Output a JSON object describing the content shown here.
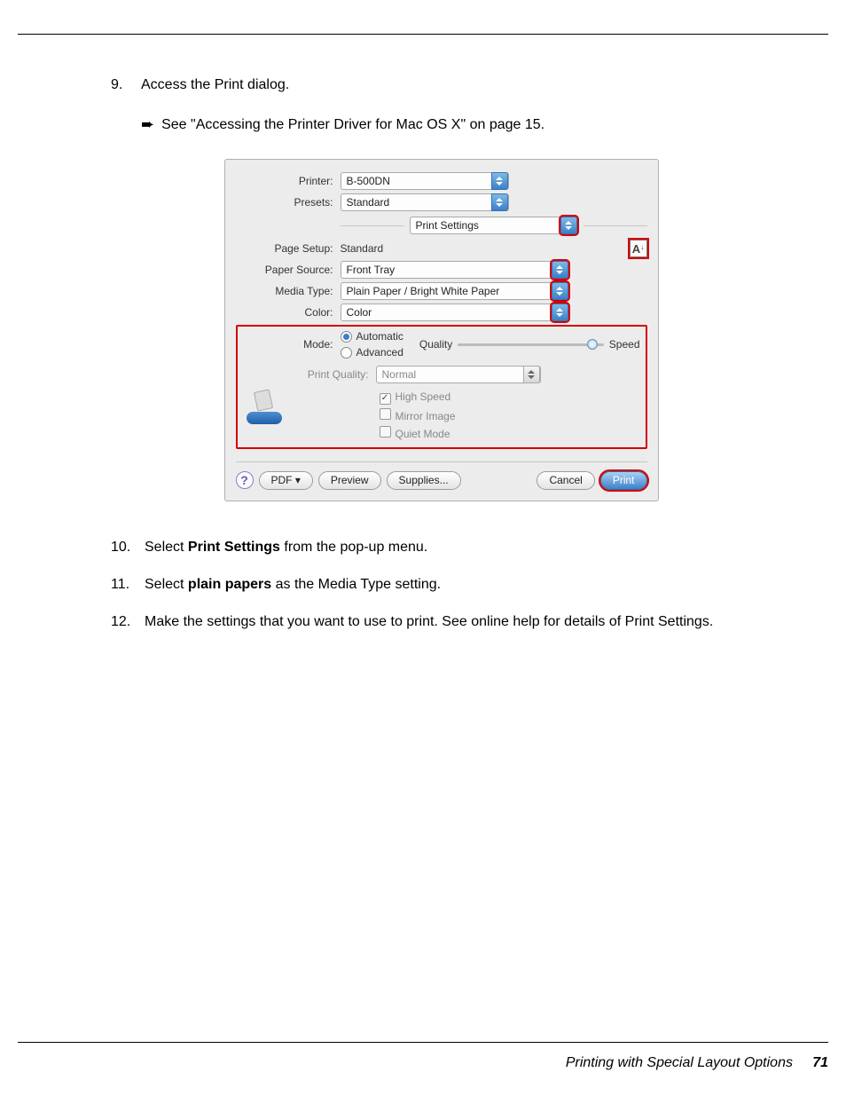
{
  "step9": {
    "num": "9.",
    "text": "Access the Print dialog.",
    "xref": "See \"Accessing the Printer Driver for Mac OS X\" on page 15."
  },
  "dialog": {
    "printer_label": "Printer:",
    "printer_value": "B-500DN",
    "presets_label": "Presets:",
    "presets_value": "Standard",
    "panel_value": "Print Settings",
    "page_setup_label": "Page Setup:",
    "page_setup_value": "Standard",
    "orient_glyph": "A",
    "paper_source_label": "Paper Source:",
    "paper_source_value": "Front Tray",
    "media_type_label": "Media Type:",
    "media_type_value": "Plain Paper / Bright White Paper",
    "color_label": "Color:",
    "color_value": "Color",
    "mode_label": "Mode:",
    "mode_auto": "Automatic",
    "mode_adv": "Advanced",
    "slider_left": "Quality",
    "slider_right": "Speed",
    "slider_pos_pct": 92,
    "print_quality_label": "Print Quality:",
    "print_quality_value": "Normal",
    "chk_highspeed": "High Speed",
    "chk_mirror": "Mirror Image",
    "chk_quiet": "Quiet Mode",
    "help": "?",
    "pdf_btn": "PDF ▾",
    "preview_btn": "Preview",
    "supplies_btn": "Supplies...",
    "cancel_btn": "Cancel",
    "print_btn": "Print",
    "highlight_color": "#d40000",
    "stepper_blue": "#3a80c8"
  },
  "step10": {
    "num": "10.",
    "pre": "Select ",
    "bold": "Print Settings",
    "post": " from the pop-up menu."
  },
  "step11": {
    "num": "11.",
    "pre": "Select ",
    "bold": "plain papers",
    "post": " as the Media Type setting."
  },
  "step12": {
    "num": "12.",
    "text": "Make the settings that you want to use to print. See online help for details of Print Settings."
  },
  "footer": {
    "section": "Printing with Special Layout Options",
    "page": "71"
  }
}
